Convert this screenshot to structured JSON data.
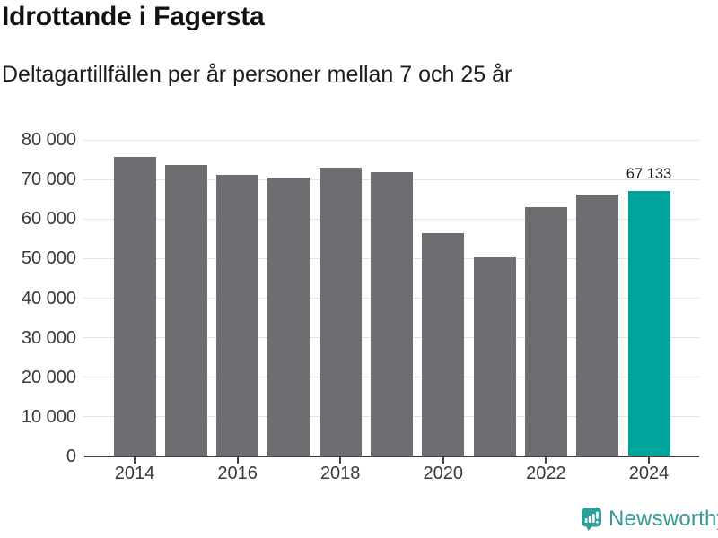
{
  "header": {
    "title": "Idrottande i Fagersta",
    "subtitle": "Deltagartillfällen per år personer mellan 7 och 25 år"
  },
  "chart_data": {
    "type": "bar",
    "title": "Idrottande i Fagersta",
    "subtitle": "Deltagartillfällen per år personer mellan 7 och 25 år",
    "categories": [
      "2014",
      "2015",
      "2016",
      "2017",
      "2018",
      "2019",
      "2020",
      "2021",
      "2022",
      "2023",
      "2024"
    ],
    "values": [
      75600,
      73600,
      71100,
      70500,
      72900,
      71800,
      56500,
      50300,
      63000,
      66100,
      67133
    ],
    "bar_color": "#6e6d72",
    "highlight": {
      "index": 10,
      "color": "#00a49b"
    },
    "annotation": {
      "text": "67 133",
      "category": "2024"
    },
    "yaxis": {
      "ylim": [
        0,
        80000
      ],
      "ticks": [
        0,
        10000,
        20000,
        30000,
        40000,
        50000,
        60000,
        70000,
        80000
      ],
      "tick_labels": [
        "0",
        "10 000",
        "20 000",
        "30 000",
        "40 000",
        "50 000",
        "60 000",
        "70 000",
        "80 000"
      ]
    },
    "xaxis": {
      "tick_labels": [
        "2014",
        "2016",
        "2018",
        "2020",
        "2022",
        "2024"
      ]
    },
    "grid": true,
    "legend": "none"
  },
  "footer": {
    "brand": "Newsworthy",
    "brand_color": "#359a94",
    "logo_icon": "bar-chart-speech-bubble-icon"
  }
}
